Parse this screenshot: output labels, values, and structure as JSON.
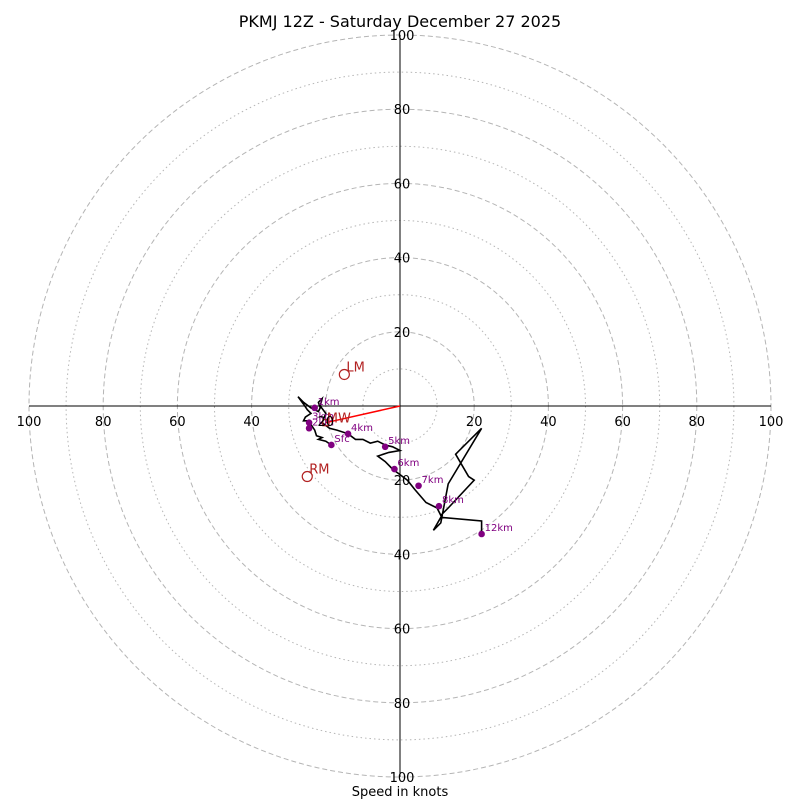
{
  "chart_data": {
    "type": "hodograph",
    "title": "PKMJ 12Z - Saturday December 27 2025",
    "xlabel": "Speed in knots",
    "units": "knots",
    "range": [
      -100,
      100
    ],
    "major_rings": [
      20,
      40,
      60,
      80,
      100
    ],
    "minor_rings": [
      10,
      30,
      50,
      70,
      90
    ],
    "x_tick_labels": [
      "100",
      "80",
      "60",
      "40",
      "20",
      "20",
      "40",
      "60",
      "80",
      "100"
    ],
    "x_tick_values": [
      -100,
      -80,
      -60,
      -40,
      -20,
      20,
      40,
      60,
      80,
      100
    ],
    "y_tick_labels": [
      "100",
      "80",
      "60",
      "40",
      "20",
      "20",
      "40",
      "60",
      "80",
      "100"
    ],
    "y_tick_values": [
      100,
      80,
      60,
      40,
      20,
      -20,
      -40,
      -60,
      -80,
      -100
    ],
    "hodograph_trace": [
      [
        -18.5,
        -10.5
      ],
      [
        -20,
        -9.5
      ],
      [
        -22,
        -9
      ],
      [
        -21,
        -8.5
      ],
      [
        -22.5,
        -8
      ],
      [
        -23,
        -6.5
      ],
      [
        -24,
        -5
      ],
      [
        -25,
        -4
      ],
      [
        -26,
        -4
      ],
      [
        -25.5,
        -3
      ],
      [
        -24,
        -2
      ],
      [
        -25,
        -1
      ],
      [
        -26,
        0.5
      ],
      [
        -27.5,
        2.5
      ],
      [
        -26,
        1
      ],
      [
        -24,
        -0.5
      ],
      [
        -22,
        -1.5
      ],
      [
        -21.5,
        -0.5
      ],
      [
        -22,
        1
      ],
      [
        -21,
        2
      ],
      [
        -21.5,
        0
      ],
      [
        -20,
        -2
      ],
      [
        -21,
        -4.5
      ],
      [
        -19,
        -6
      ],
      [
        -17,
        -6.5
      ],
      [
        -14,
        -7.5
      ],
      [
        -12,
        -9
      ],
      [
        -10,
        -9
      ],
      [
        -8,
        -10
      ],
      [
        -6,
        -9.5
      ],
      [
        -4,
        -10.5
      ],
      [
        -2,
        -11
      ],
      [
        0,
        -12
      ],
      [
        -3,
        -12.5
      ],
      [
        -6,
        -13.5
      ],
      [
        -4,
        -15
      ],
      [
        -2,
        -17
      ],
      [
        0,
        -18.5
      ],
      [
        2,
        -20
      ],
      [
        4,
        -22.5
      ],
      [
        7,
        -26
      ],
      [
        10,
        -27.5
      ],
      [
        11,
        -29.5
      ],
      [
        13,
        -27.5
      ],
      [
        20,
        -20
      ],
      [
        18.5,
        -19
      ],
      [
        15,
        -13
      ],
      [
        22,
        -6
      ],
      [
        13,
        -21
      ],
      [
        11,
        -31.5
      ],
      [
        9,
        -33.5
      ],
      [
        11,
        -30
      ],
      [
        22,
        -31
      ],
      [
        22,
        -34.5
      ]
    ],
    "height_markers": [
      {
        "label": "Sfc",
        "u": -18.5,
        "v": -10.5
      },
      {
        "label": "1km",
        "u": -23,
        "v": -0.5
      },
      {
        "label": "2km",
        "u": -24.5,
        "v": -6
      },
      {
        "label": "3km",
        "u": -24.5,
        "v": -4.5
      },
      {
        "label": "4km",
        "u": -14,
        "v": -7.5
      },
      {
        "label": "5km",
        "u": -4,
        "v": -11
      },
      {
        "label": "6km",
        "u": -1.5,
        "v": -17
      },
      {
        "label": "7km",
        "u": 5,
        "v": -21.5
      },
      {
        "label": "8km",
        "u": 10.5,
        "v": -27
      },
      {
        "label": "12km",
        "u": 22,
        "v": -34.5
      }
    ],
    "motion_vectors": [
      {
        "label": "LM",
        "u": -15,
        "v": 8.5
      },
      {
        "label": "RM",
        "u": -25,
        "v": -19
      },
      {
        "label": "MW",
        "u": -20,
        "v": -4.5
      }
    ],
    "shear_vector": {
      "from": [
        0,
        0
      ],
      "to": [
        -20,
        -4.5
      ]
    },
    "colors": {
      "grid": "#b5b5b5",
      "trace": "#000000",
      "height_marker": "#800080",
      "motion": "#b22222",
      "shear": "#ff0000"
    }
  }
}
